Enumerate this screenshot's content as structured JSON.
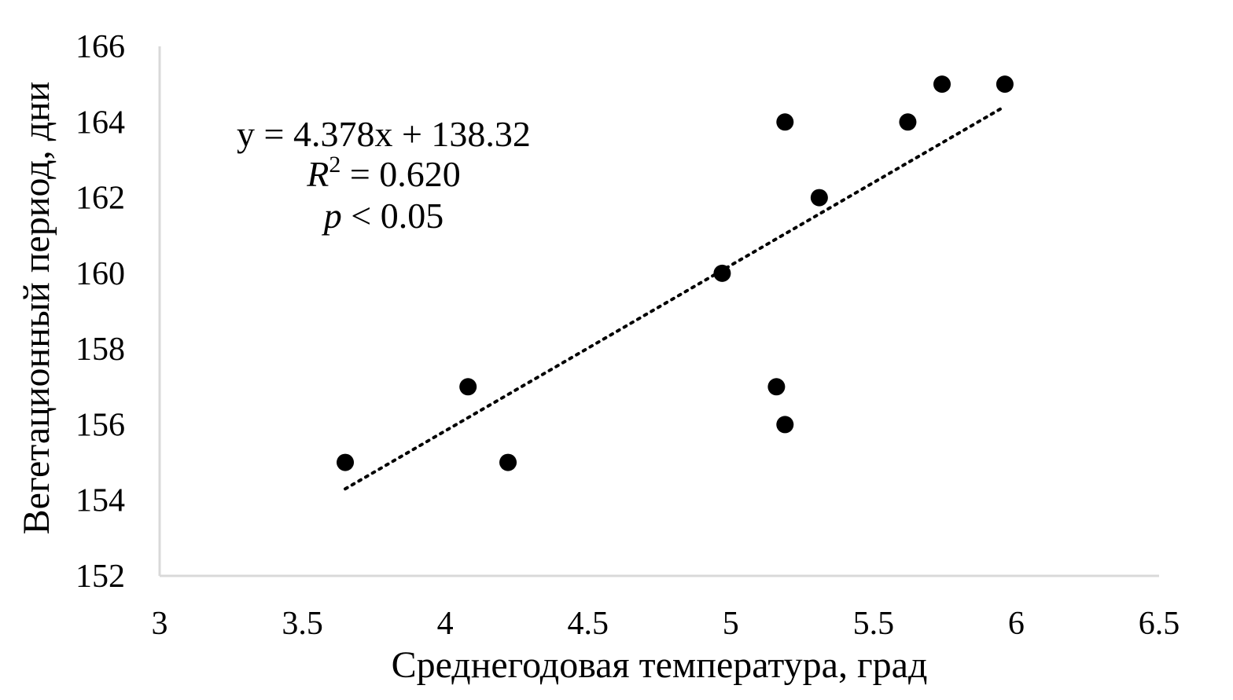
{
  "chart_data": {
    "type": "scatter",
    "xlabel": "Среднегодовая температура, град",
    "ylabel": "Вегетационный период, дни",
    "xlim": [
      3,
      6.5
    ],
    "ylim": [
      152,
      166
    ],
    "x_ticks": [
      3,
      3.5,
      4,
      4.5,
      5,
      5.5,
      6,
      6.5
    ],
    "x_tick_labels": [
      "3",
      "3.5",
      "4",
      "4.5",
      "5",
      "5.5",
      "6",
      "6.5"
    ],
    "y_ticks": [
      152,
      154,
      156,
      158,
      160,
      162,
      164,
      166
    ],
    "y_tick_labels": [
      "152",
      "154",
      "156",
      "158",
      "160",
      "162",
      "164",
      "166"
    ],
    "grid": false,
    "legend": "none",
    "points": [
      {
        "x": 3.65,
        "y": 155
      },
      {
        "x": 4.08,
        "y": 157
      },
      {
        "x": 4.22,
        "y": 155
      },
      {
        "x": 4.97,
        "y": 160
      },
      {
        "x": 5.16,
        "y": 157
      },
      {
        "x": 5.19,
        "y": 156
      },
      {
        "x": 5.19,
        "y": 164
      },
      {
        "x": 5.31,
        "y": 162
      },
      {
        "x": 5.62,
        "y": 164
      },
      {
        "x": 5.74,
        "y": 165
      },
      {
        "x": 5.96,
        "y": 165
      }
    ],
    "trendline": {
      "type": "linear",
      "style": "dotted",
      "slope": 4.378,
      "intercept": 138.32,
      "x_range": [
        3.65,
        5.96
      ]
    },
    "annotation": {
      "equation": "y = 4.378x + 138.32",
      "r2_symbol": "R",
      "r2_exponent": "2",
      "r2_value": " = 0.620",
      "p_symbol": "p",
      "p_value": " < 0.05"
    },
    "colors": {
      "points": "#000000",
      "trendline": "#000000",
      "axis": "#d9d9d9",
      "text": "#000000"
    }
  }
}
